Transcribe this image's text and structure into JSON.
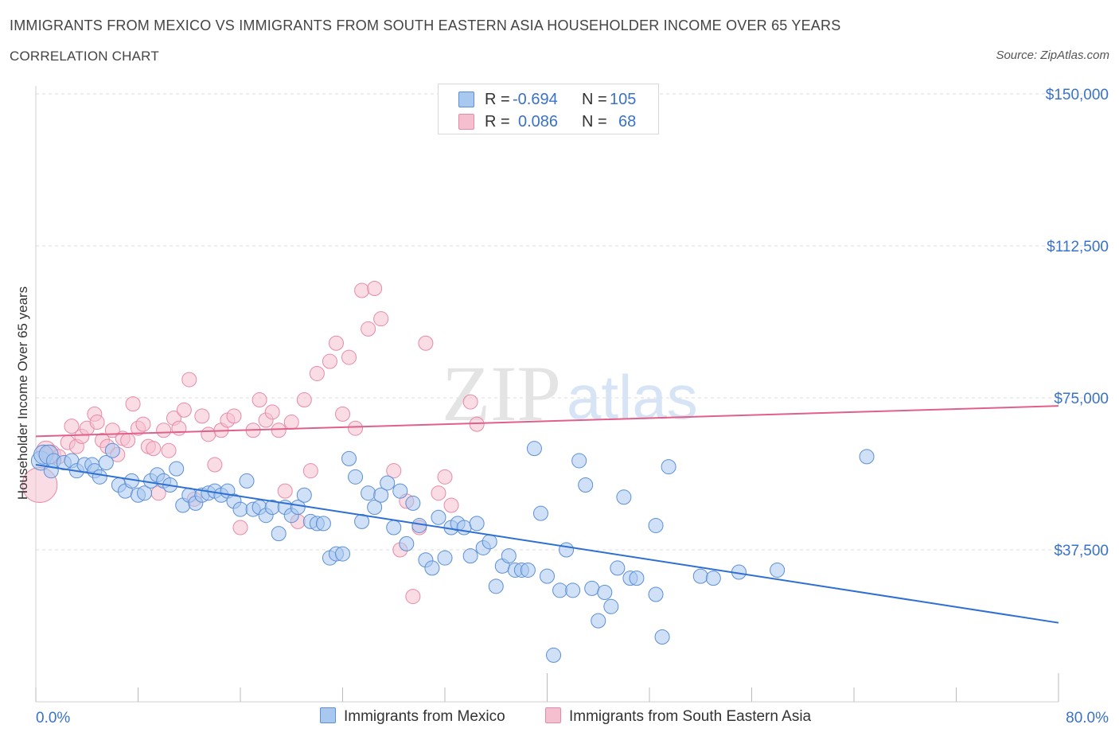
{
  "header": {
    "title": "IMMIGRANTS FROM MEXICO VS IMMIGRANTS FROM SOUTH EASTERN ASIA HOUSEHOLDER INCOME OVER 65 YEARS",
    "subtitle": "CORRELATION CHART",
    "source": "Source: ZipAtlas.com"
  },
  "legend": {
    "rows": [
      {
        "r_label": "R =",
        "r_value": "-0.694",
        "n_label": "N =",
        "n_value": "105"
      },
      {
        "r_label": "R =",
        "r_value": "0.086",
        "n_label": "N =",
        "n_value": "68"
      }
    ]
  },
  "watermark": {
    "zip": "ZIP",
    "atlas": "atlas"
  },
  "colors": {
    "mexico_fill": "#a9c8f0",
    "mexico_stroke": "#5b8fd6",
    "mexico_line": "#2e6fd3",
    "sea_fill": "#f6bfd0",
    "sea_stroke": "#e88aa6",
    "sea_line": "#e0608a",
    "axis_text": "#3a72c8",
    "grid": "#dcdcdc"
  },
  "chart_data": {
    "type": "scatter",
    "title": "IMMIGRANTS FROM MEXICO VS IMMIGRANTS FROM SOUTH EASTERN ASIA HOUSEHOLDER INCOME OVER 65 YEARS",
    "subtitle": "CORRELATION CHART",
    "xlabel": "",
    "ylabel": "Householder Income Over 65 years",
    "xlim": [
      0,
      80
    ],
    "ylim": [
      0,
      150000
    ],
    "x_tick_labels": [
      "0.0%",
      "80.0%"
    ],
    "y_ticks": [
      37500,
      75000,
      112500,
      150000
    ],
    "y_tick_labels": [
      "$37,500",
      "$75,000",
      "$112,500",
      "$150,000"
    ],
    "grid": true,
    "legend_position": "top-center",
    "series": [
      {
        "name": "Immigrants from Mexico",
        "R": -0.694,
        "N": 105,
        "trend": {
          "x": [
            0,
            80
          ],
          "y": [
            58500,
            19500
          ]
        },
        "points": [
          [
            0.4,
            59500
          ],
          [
            0.6,
            61000
          ],
          [
            1.0,
            61000
          ],
          [
            1.2,
            57000
          ],
          [
            1.4,
            59500
          ],
          [
            2.2,
            59000
          ],
          [
            2.8,
            59500
          ],
          [
            3.2,
            57000
          ],
          [
            3.8,
            58500
          ],
          [
            4.4,
            58500
          ],
          [
            4.6,
            57000
          ],
          [
            5.0,
            55500
          ],
          [
            5.5,
            59000
          ],
          [
            6.0,
            62000
          ],
          [
            6.5,
            53500
          ],
          [
            7.0,
            52000
          ],
          [
            7.5,
            54500
          ],
          [
            8.0,
            51000
          ],
          [
            8.5,
            51500
          ],
          [
            9.0,
            54500
          ],
          [
            9.5,
            56000
          ],
          [
            10.0,
            54500
          ],
          [
            10.5,
            53500
          ],
          [
            11.0,
            57500
          ],
          [
            11.5,
            48500
          ],
          [
            12.0,
            51000
          ],
          [
            12.5,
            49000
          ],
          [
            13.0,
            51000
          ],
          [
            13.5,
            51500
          ],
          [
            14.0,
            52000
          ],
          [
            14.5,
            51000
          ],
          [
            15.0,
            52000
          ],
          [
            15.5,
            49500
          ],
          [
            16.0,
            47500
          ],
          [
            16.5,
            54500
          ],
          [
            17.0,
            47500
          ],
          [
            17.5,
            48000
          ],
          [
            18.0,
            46000
          ],
          [
            18.5,
            48000
          ],
          [
            19.0,
            41500
          ],
          [
            19.5,
            48000
          ],
          [
            20.0,
            46000
          ],
          [
            20.5,
            48000
          ],
          [
            21.0,
            51000
          ],
          [
            21.5,
            44500
          ],
          [
            22.0,
            44000
          ],
          [
            22.5,
            44000
          ],
          [
            23.0,
            35500
          ],
          [
            23.5,
            36500
          ],
          [
            24.0,
            36500
          ],
          [
            24.5,
            60000
          ],
          [
            25.0,
            55500
          ],
          [
            25.5,
            44500
          ],
          [
            26.0,
            51500
          ],
          [
            26.5,
            48000
          ],
          [
            27.0,
            51000
          ],
          [
            27.5,
            54000
          ],
          [
            28.0,
            43000
          ],
          [
            28.5,
            52000
          ],
          [
            29.0,
            39000
          ],
          [
            29.5,
            49000
          ],
          [
            30.0,
            43500
          ],
          [
            30.5,
            35000
          ],
          [
            31.0,
            33000
          ],
          [
            31.5,
            45500
          ],
          [
            32.0,
            35500
          ],
          [
            32.5,
            43000
          ],
          [
            33.0,
            44000
          ],
          [
            33.5,
            43000
          ],
          [
            34.0,
            36000
          ],
          [
            34.5,
            44000
          ],
          [
            35.0,
            38000
          ],
          [
            35.5,
            39500
          ],
          [
            36.0,
            28500
          ],
          [
            36.5,
            33500
          ],
          [
            37.0,
            36000
          ],
          [
            37.5,
            32500
          ],
          [
            38.0,
            32500
          ],
          [
            38.5,
            32500
          ],
          [
            39.0,
            62500
          ],
          [
            39.5,
            46500
          ],
          [
            40.0,
            31000
          ],
          [
            40.5,
            11500
          ],
          [
            41.0,
            27500
          ],
          [
            41.5,
            37500
          ],
          [
            42.0,
            27500
          ],
          [
            42.5,
            59500
          ],
          [
            43.0,
            53500
          ],
          [
            43.5,
            28000
          ],
          [
            44.0,
            20000
          ],
          [
            44.5,
            27000
          ],
          [
            45.0,
            23500
          ],
          [
            45.5,
            33000
          ],
          [
            46.0,
            50500
          ],
          [
            46.5,
            30500
          ],
          [
            47.0,
            30500
          ],
          [
            48.5,
            43500
          ],
          [
            48.5,
            26500
          ],
          [
            49.0,
            16000
          ],
          [
            49.5,
            58000
          ],
          [
            52.0,
            31000
          ],
          [
            53.0,
            30500
          ],
          [
            55.0,
            32000
          ],
          [
            58.0,
            32500
          ],
          [
            65.0,
            60500
          ]
        ]
      },
      {
        "name": "Immigrants from South Eastern Asia",
        "R": 0.086,
        "N": 68,
        "trend": {
          "x": [
            0,
            80
          ],
          "y": [
            65500,
            73000
          ]
        },
        "points": [
          [
            0.3,
            53500
          ],
          [
            0.8,
            62000
          ],
          [
            1.2,
            61000
          ],
          [
            1.8,
            60500
          ],
          [
            2.5,
            64000
          ],
          [
            2.8,
            68000
          ],
          [
            3.2,
            63000
          ],
          [
            3.6,
            65500
          ],
          [
            4.0,
            67500
          ],
          [
            4.6,
            71000
          ],
          [
            4.8,
            69000
          ],
          [
            5.2,
            64500
          ],
          [
            5.6,
            63000
          ],
          [
            6.0,
            67000
          ],
          [
            6.4,
            61000
          ],
          [
            6.8,
            65000
          ],
          [
            7.2,
            64500
          ],
          [
            7.6,
            73500
          ],
          [
            8.0,
            67500
          ],
          [
            8.4,
            68500
          ],
          [
            8.8,
            63000
          ],
          [
            9.2,
            62500
          ],
          [
            9.6,
            51500
          ],
          [
            10.0,
            67000
          ],
          [
            10.4,
            62000
          ],
          [
            10.8,
            70000
          ],
          [
            11.2,
            67500
          ],
          [
            11.6,
            72000
          ],
          [
            12.0,
            79500
          ],
          [
            12.4,
            50000
          ],
          [
            13.0,
            70500
          ],
          [
            13.5,
            66000
          ],
          [
            14.0,
            58500
          ],
          [
            14.5,
            67000
          ],
          [
            15.0,
            69500
          ],
          [
            15.5,
            70500
          ],
          [
            16.0,
            43000
          ],
          [
            17.0,
            67000
          ],
          [
            17.5,
            74500
          ],
          [
            18.0,
            69500
          ],
          [
            18.5,
            71500
          ],
          [
            19.0,
            67000
          ],
          [
            19.5,
            52000
          ],
          [
            20.0,
            69000
          ],
          [
            20.5,
            44500
          ],
          [
            21.0,
            74500
          ],
          [
            21.5,
            57000
          ],
          [
            22.0,
            81000
          ],
          [
            23.0,
            84000
          ],
          [
            23.5,
            88500
          ],
          [
            24.0,
            71000
          ],
          [
            24.5,
            85000
          ],
          [
            25.0,
            67500
          ],
          [
            25.5,
            101500
          ],
          [
            26.0,
            92000
          ],
          [
            26.5,
            102000
          ],
          [
            27.0,
            94500
          ],
          [
            28.0,
            57000
          ],
          [
            28.5,
            37500
          ],
          [
            29.0,
            49500
          ],
          [
            29.5,
            26000
          ],
          [
            30.0,
            43000
          ],
          [
            30.5,
            88500
          ],
          [
            31.5,
            51500
          ],
          [
            32.0,
            55500
          ],
          [
            32.5,
            48500
          ],
          [
            34.0,
            74000
          ],
          [
            34.5,
            68500
          ]
        ]
      }
    ]
  },
  "bottom_legend": {
    "items": [
      {
        "label": "Immigrants from Mexico"
      },
      {
        "label": "Immigrants from South Eastern Asia"
      }
    ]
  }
}
